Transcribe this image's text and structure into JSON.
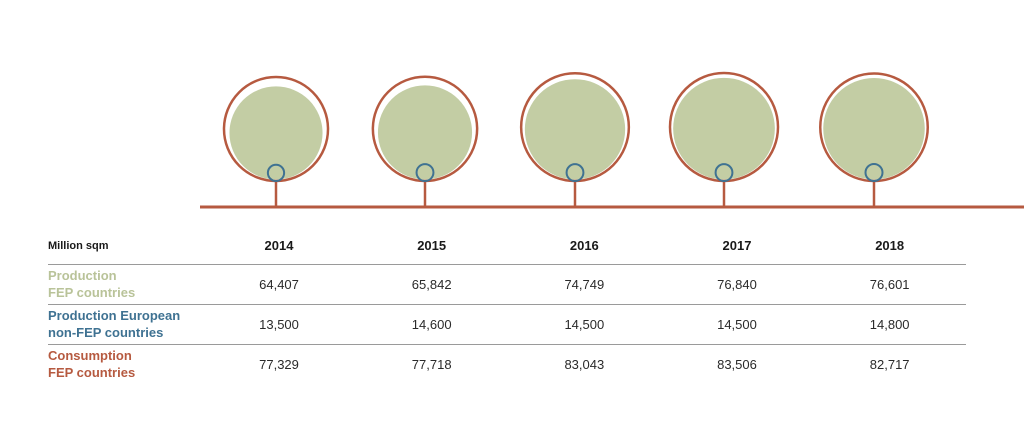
{
  "colors": {
    "production_fep": "#c3cda4",
    "production_non_fep": "#3f7292",
    "consumption_fep": "#b65a40",
    "axis": "#b65a40",
    "divider": "#9a9a9a"
  },
  "table": {
    "unit_label": "Million sqm",
    "years": [
      "2014",
      "2015",
      "2016",
      "2017",
      "2018"
    ],
    "rows": [
      {
        "label_line1": "Production",
        "label_line2": "FEP countries",
        "values": [
          "64,407",
          "65,842",
          "74,749",
          "76,840",
          "76,601"
        ]
      },
      {
        "label_line1": "Production European",
        "label_line2": "non-FEP countries",
        "values": [
          "13,500",
          "14,600",
          "14,500",
          "14,500",
          "14,800"
        ]
      },
      {
        "label_line1": "Consumption",
        "label_line2": "FEP countries",
        "values": [
          "77,329",
          "77,718",
          "83,043",
          "83,506",
          "82,717"
        ]
      }
    ]
  },
  "chart_data": {
    "type": "bubble",
    "categories": [
      "2014",
      "2015",
      "2016",
      "2017",
      "2018"
    ],
    "series": [
      {
        "name": "Production FEP countries",
        "values": [
          64407,
          65842,
          74749,
          76840,
          76601
        ]
      },
      {
        "name": "Production European non-FEP countries",
        "values": [
          13500,
          14600,
          14500,
          14500,
          14800
        ]
      },
      {
        "name": "Consumption FEP countries",
        "values": [
          77329,
          77718,
          83043,
          83506,
          82717
        ]
      }
    ]
  }
}
